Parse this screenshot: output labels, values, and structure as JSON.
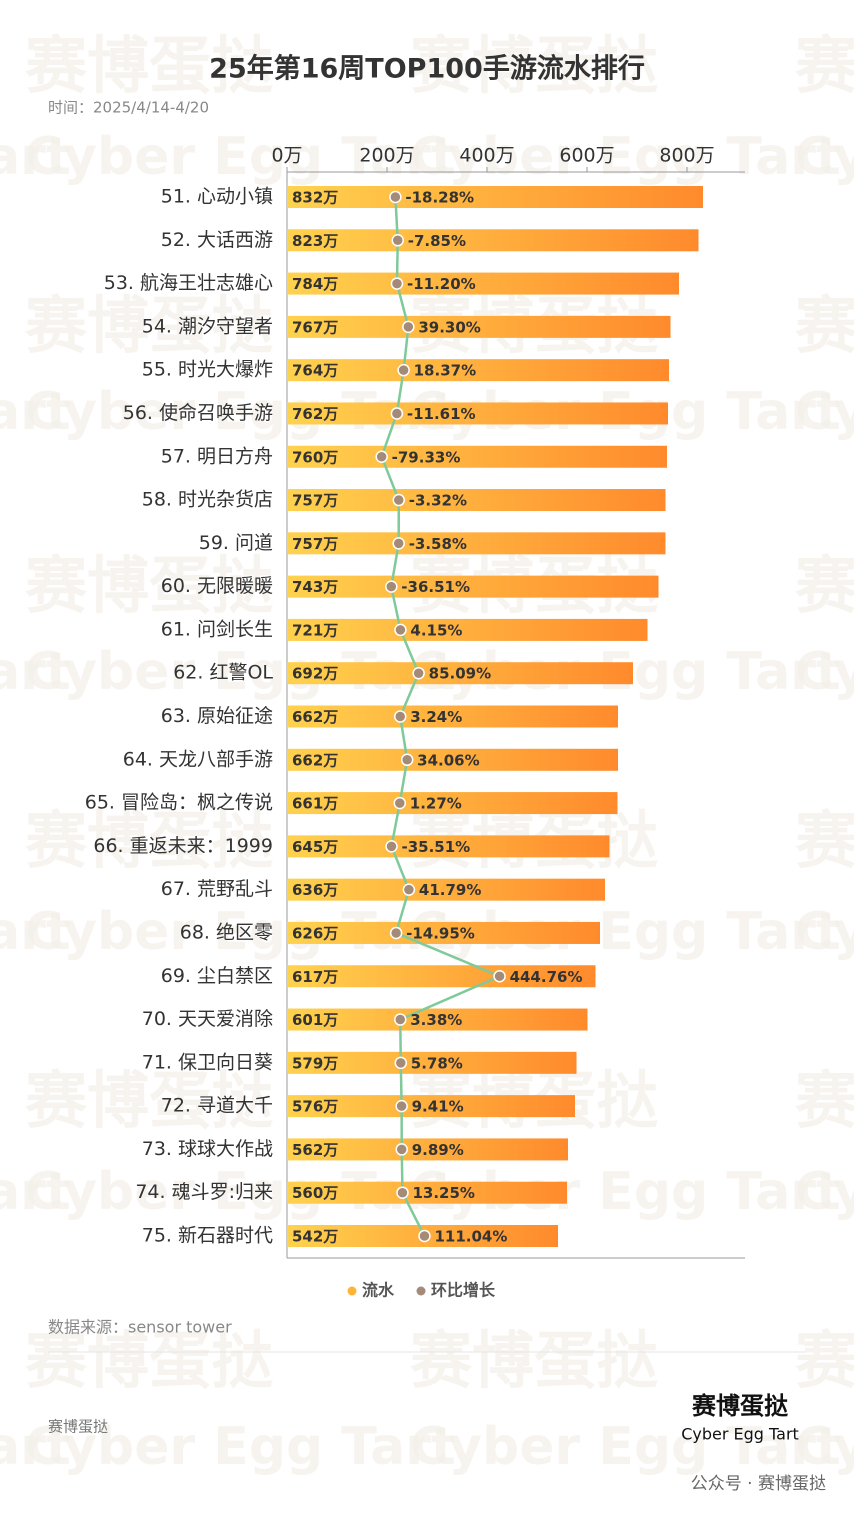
{
  "chart_data": {
    "type": "bar",
    "orientation": "horizontal",
    "title": "25年第16周TOP100手游流水排行",
    "subtitle": "时间：2025/4/14-4/20",
    "source": "数据来源：sensor tower",
    "footer_left": "赛博蛋挞",
    "logo_title": "赛博蛋挞",
    "logo_subtitle": "Cyber Egg Tart",
    "footer_right": "公众号 · 赛博蛋挞",
    "watermark": [
      "赛博蛋挞",
      "Cyber Egg Tart"
    ],
    "legend_position": "bottom",
    "categories": [
      "51. 心动小镇",
      "52. 大话西游",
      "53. 航海王壮志雄心",
      "54. 潮汐守望者",
      "55. 时光大爆炸",
      "56. 使命召唤手游",
      "57. 明日方舟",
      "58. 时光杂货店",
      "59. 问道",
      "60. 无限暖暖",
      "61. 问剑长生",
      "62. 红警OL",
      "63. 原始征途",
      "64. 天龙八部手游",
      "65. 冒险岛：枫之传说",
      "66. 重返未来：1999",
      "67. 荒野乱斗",
      "68. 绝区零",
      "69. 尘白禁区",
      "70. 天天爱消除",
      "71. 保卫向日葵",
      "72. 寻道大千",
      "73. 球球大作战",
      "74. 魂斗罗:归来",
      "75. 新石器时代"
    ],
    "xlim": [
      0,
      900
    ],
    "xticks": [
      {
        "value": 0,
        "label": "0万"
      },
      {
        "value": 200,
        "label": "200万"
      },
      {
        "value": 400,
        "label": "400万"
      },
      {
        "value": 600,
        "label": "600万"
      },
      {
        "value": 800,
        "label": "800万"
      }
    ],
    "x2lim": [
      -500,
      1500
    ],
    "series": [
      {
        "name": "流水",
        "color": "#ffb436",
        "color_start": "#ffd24e",
        "color_end": "#ff8a2c",
        "values": [
          832,
          823,
          784,
          767,
          764,
          762,
          760,
          757,
          757,
          743,
          721,
          692,
          662,
          662,
          661,
          645,
          636,
          626,
          617,
          601,
          579,
          576,
          562,
          560,
          542
        ],
        "value_labels": [
          "832万",
          "823万",
          "784万",
          "767万",
          "764万",
          "762万",
          "760万",
          "757万",
          "757万",
          "743万",
          "721万",
          "692万",
          "662万",
          "662万",
          "661万",
          "645万",
          "636万",
          "626万",
          "617万",
          "601万",
          "579万",
          "576万",
          "562万",
          "560万",
          "542万"
        ]
      },
      {
        "name": "环比增长",
        "color": "#7fc99a",
        "marker_color": "#a48a78",
        "axis": "x2",
        "values": [
          -18.28,
          -7.85,
          -11.2,
          39.3,
          18.37,
          -11.61,
          -79.33,
          -3.32,
          -3.58,
          -36.51,
          4.15,
          85.09,
          3.24,
          34.06,
          1.27,
          -35.51,
          41.79,
          -14.95,
          444.76,
          3.38,
          5.78,
          9.41,
          9.89,
          13.25,
          111.04
        ],
        "value_labels": [
          "-18.28%",
          "-7.85%",
          "-11.20%",
          "39.30%",
          "18.37%",
          "-11.61%",
          "-79.33%",
          "-3.32%",
          "-3.58%",
          "-36.51%",
          "4.15%",
          "85.09%",
          "3.24%",
          "34.06%",
          "1.27%",
          "-35.51%",
          "41.79%",
          "-14.95%",
          "444.76%",
          "3.38%",
          "5.78%",
          "9.41%",
          "9.89%",
          "13.25%",
          "111.04%"
        ]
      }
    ]
  }
}
